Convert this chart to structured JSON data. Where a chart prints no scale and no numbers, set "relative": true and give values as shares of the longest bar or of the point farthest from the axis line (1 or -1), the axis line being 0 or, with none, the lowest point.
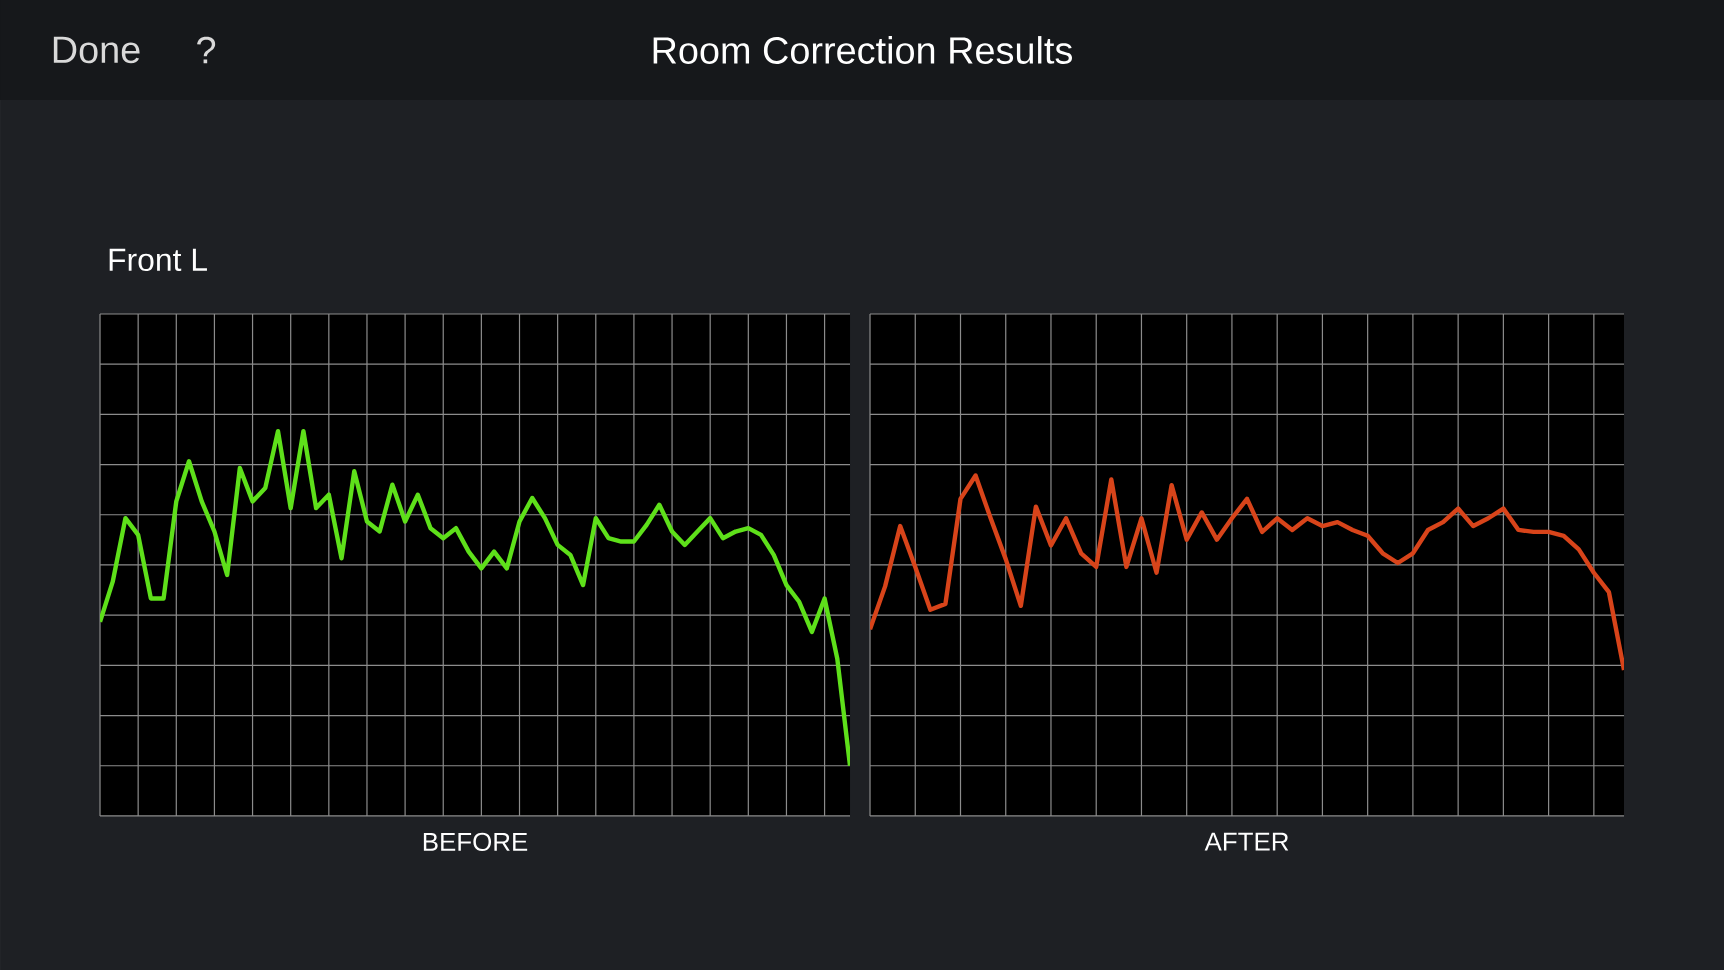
{
  "chart_data": [
    {
      "type": "line",
      "title": "Room Correction Results",
      "subtitle": "Front L",
      "xlabel": "BEFORE",
      "annotations": [
        "Done",
        "?"
      ],
      "relative": true,
      "grid": true,
      "categories": [
        null,
        null,
        null,
        null,
        null,
        null,
        null,
        null,
        null,
        null,
        null,
        null,
        null,
        null,
        null,
        null,
        null,
        null,
        null,
        null,
        null,
        null,
        null,
        null,
        null,
        null,
        null,
        null,
        null,
        null,
        null,
        null,
        null,
        null,
        null,
        null,
        null,
        null,
        null,
        null,
        null,
        null,
        null,
        null,
        null,
        null,
        null,
        null,
        null,
        null,
        null,
        null,
        null,
        null,
        null,
        null,
        null,
        null,
        null,
        null
      ],
      "series": [
        {
          "color": "#5ee01a",
          "values": [
            0.43,
            0.55,
            0.74,
            0.69,
            0.5,
            0.5,
            0.79,
            0.91,
            0.79,
            0.7,
            0.57,
            0.89,
            0.79,
            0.83,
            1.0,
            0.77,
            1.0,
            0.77,
            0.81,
            0.62,
            0.88,
            0.73,
            0.7,
            0.84,
            0.73,
            0.81,
            0.71,
            0.68,
            0.71,
            0.64,
            0.59,
            0.64,
            0.59,
            0.73,
            0.8,
            0.74,
            0.66,
            0.63,
            0.54,
            0.74,
            0.68,
            0.67,
            0.67,
            0.72,
            0.78,
            0.7,
            0.66,
            0.7,
            0.74,
            0.68,
            0.7,
            0.71,
            0.69,
            0.63,
            0.54,
            0.49,
            0.4,
            0.5,
            0.32,
            0
          ]
        }
      ]
    },
    {
      "type": "line",
      "xlabel": "AFTER",
      "relative": true,
      "grid": true,
      "categories": [
        null,
        null,
        null,
        null,
        null,
        null,
        null,
        null,
        null,
        null,
        null,
        null,
        null,
        null,
        null,
        null,
        null,
        null,
        null,
        null,
        null,
        null,
        null,
        null,
        null,
        null,
        null,
        null,
        null,
        null,
        null,
        null,
        null,
        null,
        null,
        null,
        null,
        null,
        null,
        null,
        null,
        null,
        null,
        null,
        null,
        null,
        null,
        null,
        null,
        null,
        null
      ],
      "series": [
        {
          "color": "#d8441a",
          "values": [
            0.21,
            0.43,
            0.74,
            0.53,
            0.31,
            0.34,
            0.88,
            1.0,
            0.78,
            0.57,
            0.33,
            0.84,
            0.64,
            0.78,
            0.6,
            0.53,
            0.98,
            0.53,
            0.78,
            0.5,
            0.95,
            0.67,
            0.81,
            0.67,
            0.78,
            0.88,
            0.71,
            0.78,
            0.72,
            0.78,
            0.74,
            0.76,
            0.72,
            0.69,
            0.6,
            0.55,
            0.6,
            0.72,
            0.76,
            0.83,
            0.74,
            0.78,
            0.83,
            0.72,
            0.71,
            0.71,
            0.69,
            0.62,
            0.5,
            0.4,
            0
          ]
        }
      ]
    }
  ]
}
